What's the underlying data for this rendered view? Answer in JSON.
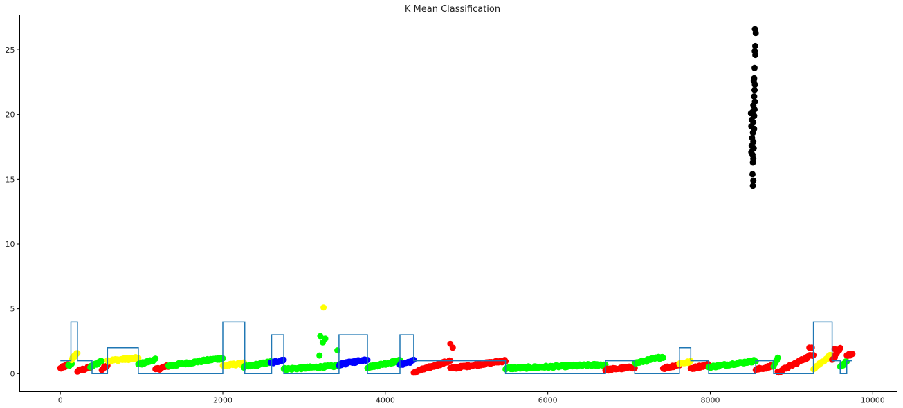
{
  "chart_data": {
    "type": "scatter",
    "title": "K Mean Classification",
    "xlabel": "",
    "ylabel": "",
    "xlim": [
      -500,
      10300
    ],
    "ylim": [
      -1.4,
      27.7
    ],
    "xticks": [
      0,
      2000,
      4000,
      6000,
      8000,
      10000
    ],
    "yticks": [
      0,
      5,
      10,
      15,
      20,
      25
    ],
    "grid": false,
    "legend": "none",
    "colors": {
      "step_line": "#1f77b4",
      "cluster_green": "#00ff00",
      "cluster_red": "#ff0000",
      "cluster_yellow": "#ffff00",
      "cluster_blue": "#0000ff",
      "cluster_black": "#000000"
    },
    "step_line": {
      "name": "",
      "x": [
        0,
        130,
        130,
        210,
        210,
        390,
        390,
        580,
        580,
        960,
        960,
        1350,
        1350,
        2000,
        2000,
        2270,
        2270,
        2600,
        2600,
        2750,
        2750,
        3430,
        3430,
        3780,
        3780,
        4180,
        4180,
        4350,
        4350,
        5480,
        5480,
        6710,
        6710,
        7070,
        7070,
        7620,
        7620,
        7760,
        7760,
        7980,
        7980,
        8560,
        8560,
        8780,
        8780,
        9270,
        9270,
        9500,
        9500,
        9600,
        9600,
        9680,
        9680,
        9750
      ],
      "y": [
        1,
        1,
        4,
        4,
        1,
        1,
        0,
        0,
        2,
        2,
        0,
        0,
        0,
        0,
        4,
        4,
        0,
        0,
        3,
        3,
        0,
        0,
        3,
        3,
        0,
        0,
        3,
        3,
        1,
        1,
        0,
        0,
        1,
        1,
        0,
        0,
        2,
        2,
        1,
        1,
        0,
        0,
        1,
        1,
        0,
        0,
        4,
        4,
        1,
        1,
        0,
        0,
        1,
        1
      ]
    },
    "series": [
      {
        "name": "",
        "color": "#ff0000",
        "start": 0,
        "end": 100,
        "y0": 0.4,
        "y1": 0.7,
        "n": 12
      },
      {
        "name": "",
        "color": "#00ff00",
        "start": 100,
        "end": 140,
        "y0": 0.6,
        "y1": 0.8,
        "n": 4
      },
      {
        "name": "",
        "color": "#ffff00",
        "start": 140,
        "end": 210,
        "y0": 1.1,
        "y1": 1.6,
        "n": 8
      },
      {
        "name": "",
        "color": "#ff0000",
        "start": 210,
        "end": 370,
        "y0": 0.2,
        "y1": 0.5,
        "n": 16
      },
      {
        "name": "",
        "color": "#00ff00",
        "start": 370,
        "end": 510,
        "y0": 0.5,
        "y1": 1.0,
        "n": 14
      },
      {
        "name": "",
        "color": "#ff0000",
        "start": 510,
        "end": 580,
        "y0": 0.3,
        "y1": 0.7,
        "n": 8
      },
      {
        "name": "",
        "color": "#ffff00",
        "start": 580,
        "end": 960,
        "y0": 1.0,
        "y1": 1.2,
        "n": 36
      },
      {
        "name": "",
        "color": "#00ff00",
        "start": 960,
        "end": 1170,
        "y0": 0.7,
        "y1": 1.1,
        "n": 20
      },
      {
        "name": "",
        "color": "#ff0000",
        "start": 1170,
        "end": 1330,
        "y0": 0.3,
        "y1": 0.6,
        "n": 16
      },
      {
        "name": "",
        "color": "#00ff00",
        "start": 1330,
        "end": 2000,
        "y0": 0.6,
        "y1": 1.2,
        "n": 64
      },
      {
        "name": "",
        "color": "#ffff00",
        "start": 2000,
        "end": 2260,
        "y0": 0.6,
        "y1": 0.8,
        "n": 24
      },
      {
        "name": "",
        "color": "#00ff00",
        "start": 2260,
        "end": 2590,
        "y0": 0.5,
        "y1": 0.9,
        "n": 32
      },
      {
        "name": "",
        "color": "#0000ff",
        "start": 2590,
        "end": 2750,
        "y0": 0.8,
        "y1": 1.1,
        "n": 16
      },
      {
        "name": "",
        "color": "#00ff00",
        "start": 2750,
        "end": 3430,
        "y0": 0.35,
        "y1": 0.6,
        "n": 64
      },
      {
        "name": "",
        "color": "#0000ff",
        "start": 3430,
        "end": 3780,
        "y0": 0.7,
        "y1": 1.1,
        "n": 32
      },
      {
        "name": "",
        "color": "#00ff00",
        "start": 3780,
        "end": 4180,
        "y0": 0.5,
        "y1": 1.0,
        "n": 40
      },
      {
        "name": "",
        "color": "#0000ff",
        "start": 4180,
        "end": 4350,
        "y0": 0.7,
        "y1": 1.0,
        "n": 16
      },
      {
        "name": "",
        "color": "#ff0000",
        "start": 4350,
        "end": 4800,
        "y0": 0.1,
        "y1": 1.0,
        "n": 44
      },
      {
        "name": "",
        "color": "#ff0000",
        "start": 4800,
        "end": 5480,
        "y0": 0.4,
        "y1": 1.0,
        "n": 64
      },
      {
        "name": "",
        "color": "#00ff00",
        "start": 5480,
        "end": 6710,
        "y0": 0.4,
        "y1": 0.7,
        "n": 110
      },
      {
        "name": "",
        "color": "#ff0000",
        "start": 6710,
        "end": 7070,
        "y0": 0.3,
        "y1": 0.5,
        "n": 32
      },
      {
        "name": "",
        "color": "#00ff00",
        "start": 7070,
        "end": 7420,
        "y0": 0.8,
        "y1": 1.3,
        "n": 32
      },
      {
        "name": "",
        "color": "#ff0000",
        "start": 7420,
        "end": 7620,
        "y0": 0.4,
        "y1": 0.7,
        "n": 20
      },
      {
        "name": "",
        "color": "#ffff00",
        "start": 7620,
        "end": 7760,
        "y0": 0.8,
        "y1": 0.9,
        "n": 12
      },
      {
        "name": "",
        "color": "#ff0000",
        "start": 7760,
        "end": 7980,
        "y0": 0.4,
        "y1": 0.7,
        "n": 20
      },
      {
        "name": "",
        "color": "#00ff00",
        "start": 7980,
        "end": 8560,
        "y0": 0.5,
        "y1": 1.0,
        "n": 52
      },
      {
        "name": "",
        "color": "#ff0000",
        "start": 8560,
        "end": 8780,
        "y0": 0.3,
        "y1": 0.6,
        "n": 20
      },
      {
        "name": "",
        "color": "#00ff00",
        "start": 8780,
        "end": 8830,
        "y0": 0.6,
        "y1": 1.2,
        "n": 6
      },
      {
        "name": "",
        "color": "#ff0000",
        "start": 8830,
        "end": 9270,
        "y0": 0.1,
        "y1": 1.5,
        "n": 40
      },
      {
        "name": "",
        "color": "#ffff00",
        "start": 9270,
        "end": 9500,
        "y0": 0.4,
        "y1": 1.5,
        "n": 20
      },
      {
        "name": "",
        "color": "#ff0000",
        "start": 9500,
        "end": 9600,
        "y0": 1.0,
        "y1": 1.9,
        "n": 10
      },
      {
        "name": "",
        "color": "#00ff00",
        "start": 9600,
        "end": 9680,
        "y0": 0.5,
        "y1": 1.0,
        "n": 8
      },
      {
        "name": "",
        "color": "#ff0000",
        "start": 9680,
        "end": 9750,
        "y0": 1.4,
        "y1": 1.5,
        "n": 6
      }
    ],
    "points": [
      {
        "x": 3240,
        "y": 5.1,
        "color": "#ffff00"
      },
      {
        "x": 3200,
        "y": 2.9,
        "color": "#00ff00"
      },
      {
        "x": 3260,
        "y": 2.7,
        "color": "#00ff00"
      },
      {
        "x": 3230,
        "y": 2.4,
        "color": "#00ff00"
      },
      {
        "x": 3190,
        "y": 1.4,
        "color": "#00ff00"
      },
      {
        "x": 3410,
        "y": 1.8,
        "color": "#00ff00"
      },
      {
        "x": 4800,
        "y": 2.3,
        "color": "#ff0000"
      },
      {
        "x": 4830,
        "y": 2.0,
        "color": "#ff0000"
      },
      {
        "x": 9220,
        "y": 2.0,
        "color": "#ff0000"
      },
      {
        "x": 9250,
        "y": 2.0,
        "color": "#ff0000"
      },
      {
        "x": 9530,
        "y": 1.9,
        "color": "#ff0000"
      },
      {
        "x": 8550,
        "y": 26.6
      },
      {
        "x": 8560,
        "y": 26.3
      },
      {
        "x": 8553,
        "y": 25.3
      },
      {
        "x": 8548,
        "y": 24.9
      },
      {
        "x": 8555,
        "y": 24.6
      },
      {
        "x": 8545,
        "y": 23.6
      },
      {
        "x": 8540,
        "y": 22.8
      },
      {
        "x": 8535,
        "y": 22.6
      },
      {
        "x": 8550,
        "y": 22.3
      },
      {
        "x": 8545,
        "y": 21.9
      },
      {
        "x": 8540,
        "y": 21.4
      },
      {
        "x": 8550,
        "y": 21.0
      },
      {
        "x": 8530,
        "y": 20.7
      },
      {
        "x": 8545,
        "y": 20.4
      },
      {
        "x": 8520,
        "y": 20.2
      },
      {
        "x": 8500,
        "y": 20.1
      },
      {
        "x": 8540,
        "y": 19.9
      },
      {
        "x": 8510,
        "y": 19.6
      },
      {
        "x": 8530,
        "y": 19.4
      },
      {
        "x": 8505,
        "y": 19.1
      },
      {
        "x": 8540,
        "y": 18.9
      },
      {
        "x": 8525,
        "y": 18.6
      },
      {
        "x": 8515,
        "y": 18.2
      },
      {
        "x": 8530,
        "y": 17.9
      },
      {
        "x": 8510,
        "y": 17.6
      },
      {
        "x": 8535,
        "y": 17.4
      },
      {
        "x": 8505,
        "y": 17.1
      },
      {
        "x": 8520,
        "y": 16.9
      },
      {
        "x": 8530,
        "y": 16.6
      },
      {
        "x": 8525,
        "y": 16.3
      },
      {
        "x": 8520,
        "y": 15.4
      },
      {
        "x": 8530,
        "y": 14.9
      },
      {
        "x": 8525,
        "y": 14.5
      }
    ]
  }
}
